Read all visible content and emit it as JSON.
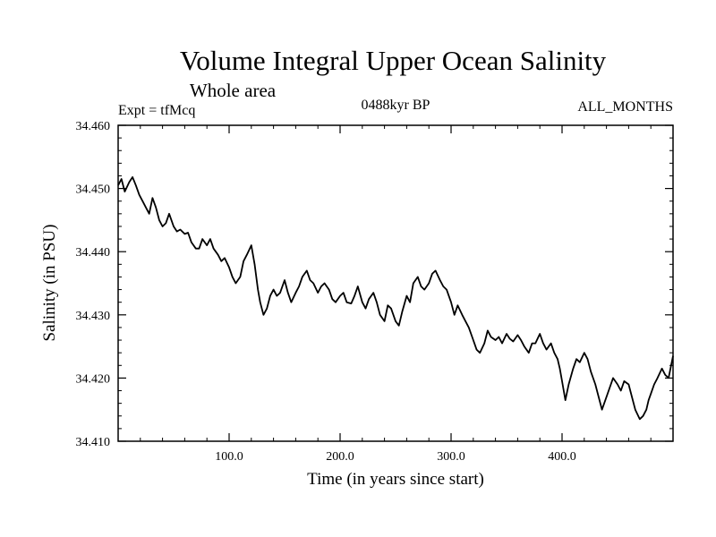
{
  "chart_data": {
    "type": "line",
    "title": "Volume Integral Upper Ocean Salinity",
    "subtitle": "Whole area",
    "header_left": "Expt = tfMcq",
    "header_center": "0488kyr BP",
    "header_right": "ALL_MONTHS",
    "xlabel": "Time (in years since start)",
    "ylabel": "Salinity (in PSU)",
    "xlim": [
      0,
      500
    ],
    "ylim": [
      34.41,
      34.46
    ],
    "xticks": [
      {
        "value": 100,
        "label": "100.0"
      },
      {
        "value": 200,
        "label": "200.0"
      },
      {
        "value": 300,
        "label": "300.0"
      },
      {
        "value": 400,
        "label": "400.0"
      }
    ],
    "yticks": [
      {
        "value": 34.41,
        "label": "34.410"
      },
      {
        "value": 34.42,
        "label": "34.420"
      },
      {
        "value": 34.43,
        "label": "34.430"
      },
      {
        "value": 34.44,
        "label": "34.440"
      },
      {
        "value": 34.45,
        "label": "34.450"
      },
      {
        "value": 34.46,
        "label": "34.460"
      }
    ],
    "series": [
      {
        "color": "#000000",
        "x": [
          0,
          3,
          6,
          10,
          13,
          16,
          19,
          22,
          25,
          28,
          31,
          34,
          37,
          40,
          43,
          46,
          50,
          53,
          56,
          60,
          63,
          66,
          70,
          73,
          76,
          80,
          83,
          86,
          90,
          93,
          96,
          100,
          103,
          106,
          110,
          113,
          116,
          120,
          123,
          126,
          128,
          131,
          134,
          137,
          140,
          143,
          146,
          150,
          153,
          156,
          160,
          163,
          166,
          170,
          173,
          176,
          180,
          183,
          186,
          190,
          193,
          196,
          200,
          203,
          206,
          210,
          213,
          216,
          220,
          223,
          226,
          230,
          233,
          236,
          240,
          243,
          246,
          250,
          253,
          256,
          260,
          263,
          266,
          270,
          273,
          276,
          280,
          283,
          286,
          290,
          293,
          296,
          300,
          303,
          306,
          310,
          313,
          316,
          320,
          323,
          326,
          330,
          333,
          336,
          340,
          343,
          346,
          350,
          353,
          356,
          360,
          363,
          366,
          370,
          373,
          376,
          380,
          383,
          386,
          390,
          393,
          396,
          398,
          400,
          403,
          406,
          410,
          413,
          416,
          420,
          423,
          426,
          430,
          433,
          436,
          440,
          443,
          446,
          450,
          453,
          456,
          460,
          463,
          466,
          470,
          473,
          476,
          478,
          480,
          483,
          486,
          490,
          493,
          496,
          500
        ],
        "values": [
          34.4505,
          34.4515,
          34.4495,
          34.451,
          34.4518,
          34.4505,
          34.449,
          34.448,
          34.447,
          34.446,
          34.4485,
          34.447,
          34.445,
          34.444,
          34.4445,
          34.446,
          34.444,
          34.4432,
          34.4435,
          34.4428,
          34.443,
          34.4415,
          34.4405,
          34.4405,
          34.442,
          34.441,
          34.442,
          34.4405,
          34.4395,
          34.4385,
          34.439,
          34.4375,
          34.436,
          34.435,
          34.436,
          34.4385,
          34.4395,
          34.441,
          34.438,
          34.434,
          34.432,
          34.43,
          34.431,
          34.433,
          34.434,
          34.433,
          34.4335,
          34.4355,
          34.4335,
          34.432,
          34.4335,
          34.4345,
          34.436,
          34.437,
          34.4355,
          34.435,
          34.4335,
          34.4345,
          34.435,
          34.434,
          34.4325,
          34.432,
          34.433,
          34.4335,
          34.432,
          34.4318,
          34.433,
          34.4345,
          34.432,
          34.431,
          34.4325,
          34.4335,
          34.432,
          34.43,
          34.429,
          34.4315,
          34.431,
          34.429,
          34.4283,
          34.4305,
          34.433,
          34.432,
          34.435,
          34.436,
          34.4345,
          34.434,
          34.435,
          34.4365,
          34.437,
          34.4355,
          34.4345,
          34.434,
          34.432,
          34.43,
          34.4315,
          34.43,
          34.429,
          34.428,
          34.426,
          34.4245,
          34.424,
          34.4255,
          34.4275,
          34.4265,
          34.426,
          34.4265,
          34.4255,
          34.427,
          34.4262,
          34.4258,
          34.4268,
          34.426,
          34.425,
          34.424,
          34.4255,
          34.4255,
          34.427,
          34.4255,
          34.4245,
          34.4255,
          34.424,
          34.423,
          34.4215,
          34.4195,
          34.4165,
          34.419,
          34.4215,
          34.423,
          34.4225,
          34.424,
          34.423,
          34.421,
          34.419,
          34.417,
          34.415,
          34.417,
          34.4185,
          34.42,
          34.419,
          34.418,
          34.4195,
          34.419,
          34.417,
          34.415,
          34.4135,
          34.414,
          34.415,
          34.4165,
          34.4175,
          34.419,
          34.42,
          34.4215,
          34.4205,
          34.42,
          34.4235
        ]
      }
    ]
  }
}
